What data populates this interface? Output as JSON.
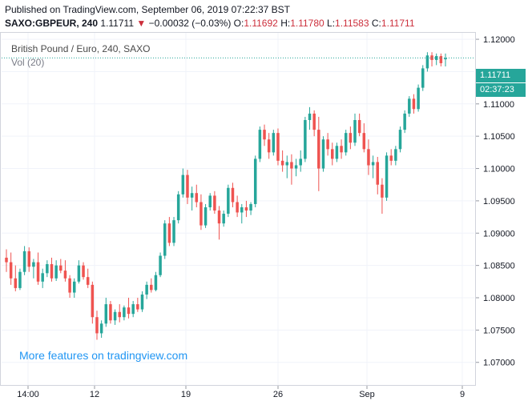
{
  "header": {
    "published": "Published on TradingView.com, September 06, 2019 07:22:37 BST",
    "symbol": "SAXO:GBPEUR, 240",
    "last": "1.11711",
    "change_arrow": "▼",
    "change": "−0.00032 (−0.03%)",
    "o_label": "O:",
    "o_value": "1.11692",
    "h_label": "H:",
    "h_value": "1.11780",
    "l_label": "L:",
    "l_value": "1.11583",
    "c_label": "C:",
    "c_value": "1.11711"
  },
  "legend": {
    "title": "British Pound / Euro, 240, SAXO",
    "volume": "Vol (20)"
  },
  "watermark": "More features on tradingview.com",
  "price_tag": "1.11711",
  "countdown_tag": "02:37:23",
  "colors": {
    "up": "#26a69a",
    "down": "#ef5350",
    "accent": "#2196f3"
  },
  "chart_data": {
    "type": "candlestick",
    "y_ticks": [
      "1.12000",
      "1.11500",
      "1.11000",
      "1.10500",
      "1.10000",
      "1.09500",
      "1.09000",
      "1.08500",
      "1.08000",
      "1.07500",
      "1.07000"
    ],
    "ylim": [
      1.0665,
      1.121
    ],
    "x_ticks": [
      "14:00",
      "12",
      "19",
      "26",
      "Sep",
      "9"
    ],
    "last_price": 1.11711,
    "series": [
      {
        "o": 1.0862,
        "h": 1.0875,
        "l": 1.084,
        "c": 1.0855
      },
      {
        "o": 1.0855,
        "h": 1.087,
        "l": 1.082,
        "c": 1.083
      },
      {
        "o": 1.083,
        "h": 1.085,
        "l": 1.081,
        "c": 1.0815
      },
      {
        "o": 1.0815,
        "h": 1.0845,
        "l": 1.0812,
        "c": 1.084
      },
      {
        "o": 1.084,
        "h": 1.088,
        "l": 1.0835,
        "c": 1.0872
      },
      {
        "o": 1.0872,
        "h": 1.0878,
        "l": 1.084,
        "c": 1.0848
      },
      {
        "o": 1.0848,
        "h": 1.086,
        "l": 1.083,
        "c": 1.0855
      },
      {
        "o": 1.0855,
        "h": 1.087,
        "l": 1.082,
        "c": 1.0825
      },
      {
        "o": 1.0825,
        "h": 1.0845,
        "l": 1.0815,
        "c": 1.0838
      },
      {
        "o": 1.0838,
        "h": 1.0858,
        "l": 1.0832,
        "c": 1.0852
      },
      {
        "o": 1.0852,
        "h": 1.0862,
        "l": 1.0825,
        "c": 1.083
      },
      {
        "o": 1.083,
        "h": 1.0858,
        "l": 1.0826,
        "c": 1.085
      },
      {
        "o": 1.085,
        "h": 1.086,
        "l": 1.0838,
        "c": 1.0842
      },
      {
        "o": 1.0842,
        "h": 1.0858,
        "l": 1.0825,
        "c": 1.083
      },
      {
        "o": 1.083,
        "h": 1.0835,
        "l": 1.08,
        "c": 1.0808
      },
      {
        "o": 1.0808,
        "h": 1.083,
        "l": 1.08,
        "c": 1.0825
      },
      {
        "o": 1.0825,
        "h": 1.0858,
        "l": 1.0822,
        "c": 1.085
      },
      {
        "o": 1.085,
        "h": 1.0855,
        "l": 1.0828,
        "c": 1.0832
      },
      {
        "o": 1.0832,
        "h": 1.0845,
        "l": 1.0815,
        "c": 1.082
      },
      {
        "o": 1.082,
        "h": 1.0825,
        "l": 1.076,
        "c": 1.077
      },
      {
        "o": 1.077,
        "h": 1.078,
        "l": 1.0735,
        "c": 1.0745
      },
      {
        "o": 1.0745,
        "h": 1.0765,
        "l": 1.0738,
        "c": 1.076
      },
      {
        "o": 1.076,
        "h": 1.08,
        "l": 1.0755,
        "c": 1.079
      },
      {
        "o": 1.079,
        "h": 1.0795,
        "l": 1.076,
        "c": 1.0765
      },
      {
        "o": 1.0765,
        "h": 1.0782,
        "l": 1.0758,
        "c": 1.0778
      },
      {
        "o": 1.0778,
        "h": 1.079,
        "l": 1.0762,
        "c": 1.077
      },
      {
        "o": 1.077,
        "h": 1.0788,
        "l": 1.0765,
        "c": 1.0785
      },
      {
        "o": 1.0785,
        "h": 1.08,
        "l": 1.0768,
        "c": 1.0775
      },
      {
        "o": 1.0775,
        "h": 1.0795,
        "l": 1.077,
        "c": 1.079
      },
      {
        "o": 1.079,
        "h": 1.08,
        "l": 1.0778,
        "c": 1.0782
      },
      {
        "o": 1.0782,
        "h": 1.081,
        "l": 1.0778,
        "c": 1.0805
      },
      {
        "o": 1.0805,
        "h": 1.0825,
        "l": 1.0798,
        "c": 1.082
      },
      {
        "o": 1.082,
        "h": 1.083,
        "l": 1.0808,
        "c": 1.0812
      },
      {
        "o": 1.0812,
        "h": 1.084,
        "l": 1.081,
        "c": 1.0835
      },
      {
        "o": 1.0835,
        "h": 1.087,
        "l": 1.0832,
        "c": 1.0865
      },
      {
        "o": 1.0865,
        "h": 1.092,
        "l": 1.086,
        "c": 1.0915
      },
      {
        "o": 1.0915,
        "h": 1.0925,
        "l": 1.088,
        "c": 1.0885
      },
      {
        "o": 1.0885,
        "h": 1.0925,
        "l": 1.088,
        "c": 1.092
      },
      {
        "o": 1.092,
        "h": 1.0965,
        "l": 1.0915,
        "c": 1.096
      },
      {
        "o": 1.096,
        "h": 1.1,
        "l": 1.0955,
        "c": 1.099
      },
      {
        "o": 1.099,
        "h": 1.0998,
        "l": 1.0945,
        "c": 1.0955
      },
      {
        "o": 1.0955,
        "h": 1.0972,
        "l": 1.0935,
        "c": 1.0962
      },
      {
        "o": 1.0962,
        "h": 1.0975,
        "l": 1.094,
        "c": 1.0948
      },
      {
        "o": 1.0948,
        "h": 1.096,
        "l": 1.0905,
        "c": 1.0912
      },
      {
        "o": 1.0912,
        "h": 1.0945,
        "l": 1.0908,
        "c": 1.094
      },
      {
        "o": 1.094,
        "h": 1.0962,
        "l": 1.0935,
        "c": 1.0958
      },
      {
        "o": 1.0958,
        "h": 1.0965,
        "l": 1.093,
        "c": 1.0935
      },
      {
        "o": 1.0935,
        "h": 1.0942,
        "l": 1.089,
        "c": 1.0915
      },
      {
        "o": 1.0915,
        "h": 1.0935,
        "l": 1.091,
        "c": 1.093
      },
      {
        "o": 1.093,
        "h": 1.0975,
        "l": 1.0925,
        "c": 1.097
      },
      {
        "o": 1.097,
        "h": 1.0978,
        "l": 1.094,
        "c": 1.0948
      },
      {
        "o": 1.0948,
        "h": 1.0958,
        "l": 1.0925,
        "c": 1.0932
      },
      {
        "o": 1.0932,
        "h": 1.0945,
        "l": 1.0915,
        "c": 1.094
      },
      {
        "o": 1.094,
        "h": 1.095,
        "l": 1.0925,
        "c": 1.0935
      },
      {
        "o": 1.0935,
        "h": 1.0948,
        "l": 1.0928,
        "c": 1.0945
      },
      {
        "o": 1.0945,
        "h": 1.102,
        "l": 1.094,
        "c": 1.1015
      },
      {
        "o": 1.1015,
        "h": 1.1065,
        "l": 1.101,
        "c": 1.106
      },
      {
        "o": 1.106,
        "h": 1.1068,
        "l": 1.1035,
        "c": 1.1045
      },
      {
        "o": 1.1045,
        "h": 1.1055,
        "l": 1.1015,
        "c": 1.1025
      },
      {
        "o": 1.1025,
        "h": 1.106,
        "l": 1.102,
        "c": 1.1055
      },
      {
        "o": 1.1055,
        "h": 1.1062,
        "l": 1.1005,
        "c": 1.1012
      },
      {
        "o": 1.1012,
        "h": 1.1028,
        "l": 1.0995,
        "c": 1.1005
      },
      {
        "o": 1.1005,
        "h": 1.102,
        "l": 1.0985,
        "c": 1.101
      },
      {
        "o": 1.101,
        "h": 1.1022,
        "l": 1.0975,
        "c": 1.1
      },
      {
        "o": 1.1,
        "h": 1.1015,
        "l": 1.0988,
        "c": 1.1005
      },
      {
        "o": 1.1005,
        "h": 1.1028,
        "l": 1.0995,
        "c": 1.1015
      },
      {
        "o": 1.1015,
        "h": 1.108,
        "l": 1.101,
        "c": 1.1075
      },
      {
        "o": 1.1075,
        "h": 1.1095,
        "l": 1.106,
        "c": 1.1085
      },
      {
        "o": 1.1085,
        "h": 1.109,
        "l": 1.105,
        "c": 1.106
      },
      {
        "o": 1.106,
        "h": 1.108,
        "l": 1.0965,
        "c": 1.1
      },
      {
        "o": 1.1,
        "h": 1.105,
        "l": 1.0995,
        "c": 1.1045
      },
      {
        "o": 1.1045,
        "h": 1.1055,
        "l": 1.102,
        "c": 1.103
      },
      {
        "o": 1.103,
        "h": 1.104,
        "l": 1.1005,
        "c": 1.1015
      },
      {
        "o": 1.1015,
        "h": 1.104,
        "l": 1.101,
        "c": 1.1035
      },
      {
        "o": 1.1035,
        "h": 1.1045,
        "l": 1.1015,
        "c": 1.1025
      },
      {
        "o": 1.1025,
        "h": 1.106,
        "l": 1.102,
        "c": 1.1055
      },
      {
        "o": 1.1055,
        "h": 1.1065,
        "l": 1.103,
        "c": 1.104
      },
      {
        "o": 1.104,
        "h": 1.1085,
        "l": 1.1035,
        "c": 1.1075
      },
      {
        "o": 1.1075,
        "h": 1.1085,
        "l": 1.105,
        "c": 1.1055
      },
      {
        "o": 1.1055,
        "h": 1.107,
        "l": 1.1025,
        "c": 1.103
      },
      {
        "o": 1.103,
        "h": 1.1045,
        "l": 1.099,
        "c": 1.1005
      },
      {
        "o": 1.1005,
        "h": 1.102,
        "l": 1.0985,
        "c": 1.101
      },
      {
        "o": 1.101,
        "h": 1.1018,
        "l": 1.096,
        "c": 1.0975
      },
      {
        "o": 1.0975,
        "h": 1.0985,
        "l": 1.093,
        "c": 1.0955
      },
      {
        "o": 1.0955,
        "h": 1.1025,
        "l": 1.095,
        "c": 1.102
      },
      {
        "o": 1.102,
        "h": 1.103,
        "l": 1.1005,
        "c": 1.1012
      },
      {
        "o": 1.1012,
        "h": 1.1035,
        "l": 1.1005,
        "c": 1.103
      },
      {
        "o": 1.103,
        "h": 1.1065,
        "l": 1.1025,
        "c": 1.106
      },
      {
        "o": 1.106,
        "h": 1.109,
        "l": 1.1055,
        "c": 1.1085
      },
      {
        "o": 1.1085,
        "h": 1.1112,
        "l": 1.108,
        "c": 1.1108
      },
      {
        "o": 1.1108,
        "h": 1.1115,
        "l": 1.1085,
        "c": 1.1092
      },
      {
        "o": 1.1092,
        "h": 1.113,
        "l": 1.1088,
        "c": 1.1125
      },
      {
        "o": 1.1125,
        "h": 1.116,
        "l": 1.112,
        "c": 1.1155
      },
      {
        "o": 1.1155,
        "h": 1.118,
        "l": 1.115,
        "c": 1.1175
      },
      {
        "o": 1.1175,
        "h": 1.118,
        "l": 1.1158,
        "c": 1.1168
      },
      {
        "o": 1.1168,
        "h": 1.1178,
        "l": 1.116,
        "c": 1.1174
      },
      {
        "o": 1.1174,
        "h": 1.1178,
        "l": 1.1158,
        "c": 1.1163
      },
      {
        "o": 1.1169,
        "h": 1.1178,
        "l": 1.1158,
        "c": 1.1171
      }
    ]
  }
}
